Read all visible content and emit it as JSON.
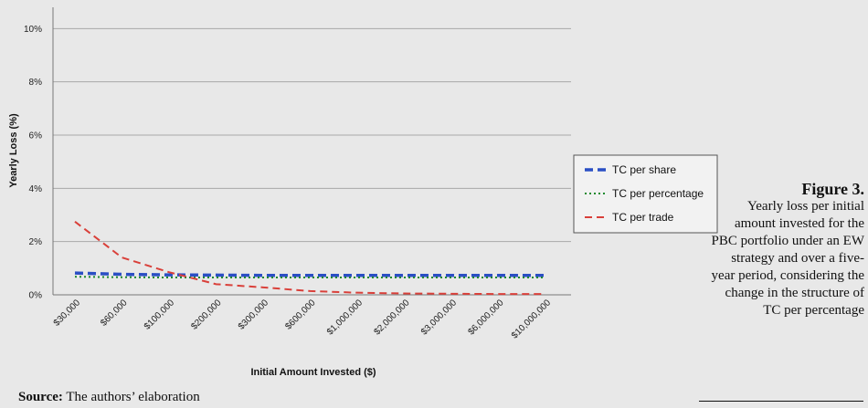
{
  "figure": {
    "label": "Figure 3.",
    "caption": "Yearly loss per initial amount invested for the PBC portfolio under an EW strategy and over a five-year period, considering the change in the structure of TC per percentage"
  },
  "source": {
    "label": "Source:",
    "text": "The authors’ elaboration"
  },
  "chart_data": {
    "type": "line",
    "xlabel": "Initial Amount Invested ($)",
    "ylabel": "Yearly Loss (%)",
    "categories": [
      "$30,000",
      "$60,000",
      "$100,000",
      "$200,000",
      "$300,000",
      "$600,000",
      "$1,000,000",
      "$2,000,000",
      "$3,000,000",
      "$6,000,000",
      "$10,000,000"
    ],
    "ylim": [
      0,
      10
    ],
    "yticks": [
      0,
      2,
      4,
      6,
      8,
      10
    ],
    "ytick_labels": [
      "0%",
      "2%",
      "4%",
      "6%",
      "8%",
      "10%"
    ],
    "grid": true,
    "legend_position": "right",
    "series": [
      {
        "name": "TC per share",
        "color": "#2b4fc4",
        "style": "dashed-thick",
        "values": [
          0.82,
          0.77,
          0.75,
          0.74,
          0.73,
          0.73,
          0.73,
          0.73,
          0.73,
          0.73,
          0.73
        ]
      },
      {
        "name": "TC per percentage",
        "color": "#1e8a2e",
        "style": "dotted",
        "values": [
          0.68,
          0.66,
          0.65,
          0.65,
          0.65,
          0.65,
          0.65,
          0.65,
          0.65,
          0.65,
          0.65
        ]
      },
      {
        "name": "TC per trade",
        "color": "#d9403a",
        "style": "dashed",
        "values": [
          2.75,
          1.4,
          0.85,
          0.4,
          0.28,
          0.14,
          0.08,
          0.05,
          0.04,
          0.03,
          0.03
        ]
      }
    ]
  }
}
